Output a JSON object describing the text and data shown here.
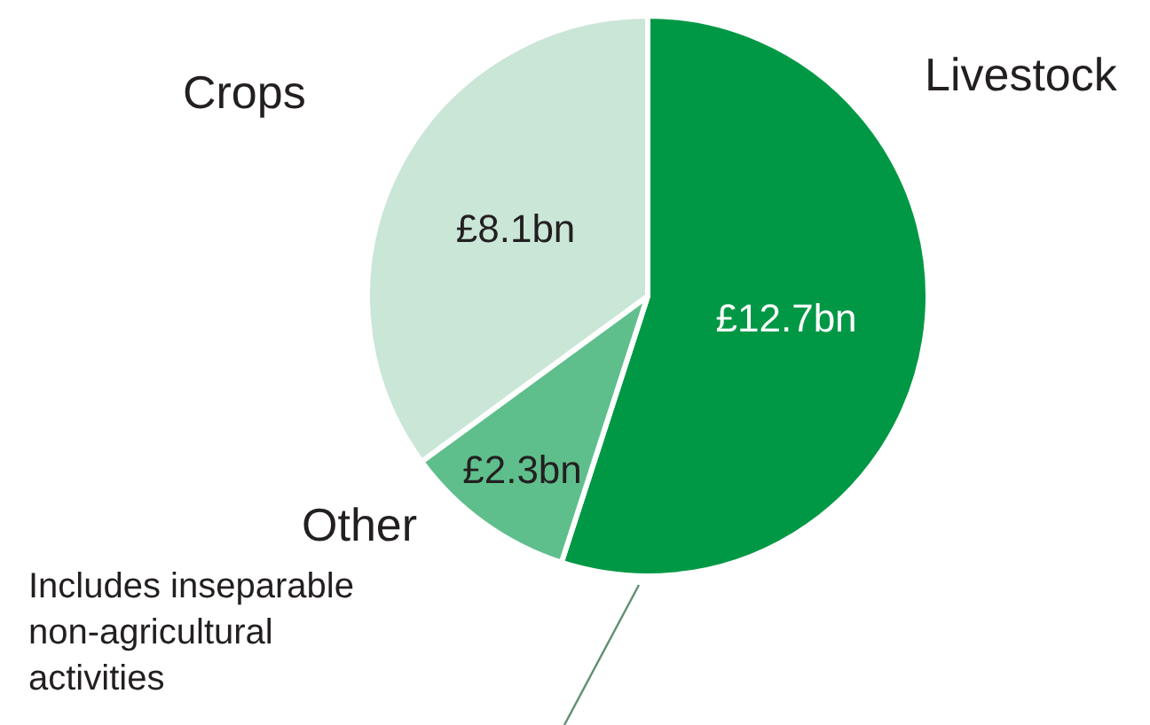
{
  "chart_data": {
    "type": "pie",
    "categories": [
      "Livestock",
      "Other",
      "Crops"
    ],
    "values": [
      12.7,
      2.3,
      8.1
    ],
    "colors": [
      "#009845",
      "#5fbf8c",
      "#c9e6d6"
    ],
    "value_labels": [
      "£12.7bn",
      "£2.3bn",
      "£8.1bn"
    ],
    "annotations": [
      "Includes inseparable non-agricultural activities"
    ],
    "legend": false
  }
}
